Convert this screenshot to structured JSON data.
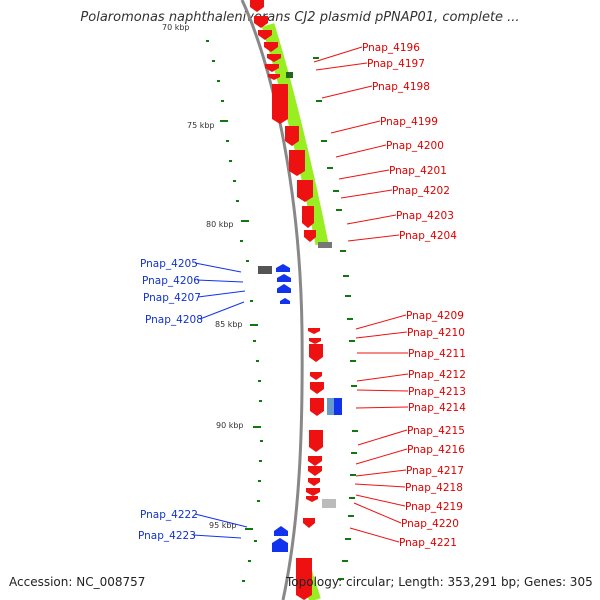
{
  "title": "Polaromonas naphthalenivorans CJ2 plasmid pPNAP01, complete ...",
  "footer": {
    "accession": "Accession: NC_008757",
    "topology": "Topology: circular; Length: 353,291 bp; Genes: 305"
  },
  "colors": {
    "forward_gene": "#ee1111",
    "reverse_gene": "#1133ee",
    "feature_band": "#99ee22",
    "tick": "#117711",
    "backbone": "#888888"
  },
  "kbp_ticks": [
    "70 kbp",
    "75 kbp",
    "80 kbp",
    "85 kbp",
    "90 kbp",
    "95 kbp"
  ],
  "forward_labels": [
    "Pnap_4196",
    "Pnap_4197",
    "Pnap_4198",
    "Pnap_4199",
    "Pnap_4200",
    "Pnap_4201",
    "Pnap_4202",
    "Pnap_4203",
    "Pnap_4204",
    "Pnap_4209",
    "Pnap_4210",
    "Pnap_4211",
    "Pnap_4212",
    "Pnap_4213",
    "Pnap_4214",
    "Pnap_4215",
    "Pnap_4216",
    "Pnap_4217",
    "Pnap_4218",
    "Pnap_4219",
    "Pnap_4220",
    "Pnap_4221"
  ],
  "reverse_labels": [
    "Pnap_4205",
    "Pnap_4206",
    "Pnap_4207",
    "Pnap_4208",
    "Pnap_4222",
    "Pnap_4223"
  ]
}
